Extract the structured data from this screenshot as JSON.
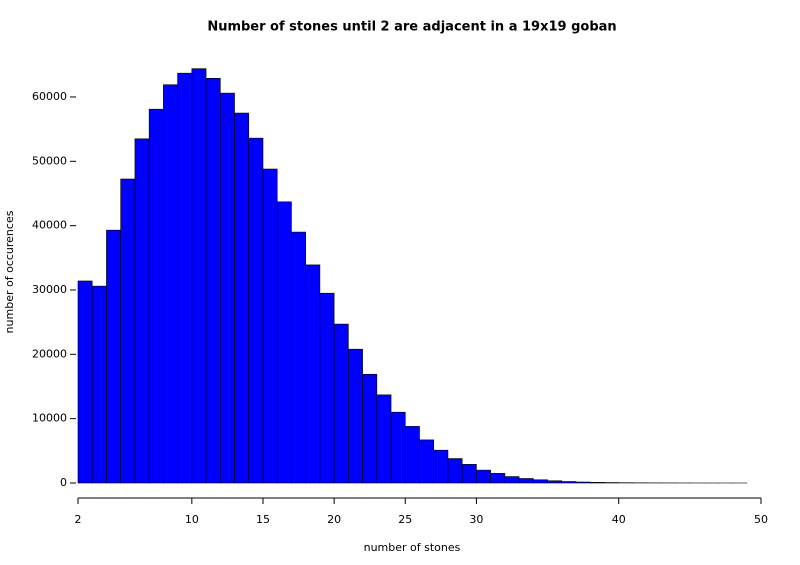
{
  "chart_data": {
    "type": "histogram",
    "title": "Number of stones until 2 are adjacent in a 19x19 goban",
    "x_label": "number of stones",
    "y_label": "number of occurences",
    "bins": [
      2,
      3,
      4,
      5,
      6,
      7,
      8,
      9,
      10,
      11,
      12,
      13,
      14,
      15,
      16,
      17,
      18,
      19,
      20,
      21,
      22,
      23,
      24,
      25,
      26,
      27,
      28,
      29,
      30,
      31,
      32,
      33,
      34,
      35,
      36,
      37,
      38,
      39,
      40,
      41,
      42,
      43,
      44,
      45,
      46,
      47,
      48,
      49
    ],
    "values": [
      31400,
      30600,
      39300,
      47250,
      53500,
      58100,
      61900,
      63700,
      64400,
      62900,
      60600,
      57500,
      53600,
      48800,
      43700,
      39000,
      33900,
      29500,
      24700,
      20800,
      16900,
      13700,
      11000,
      8800,
      6700,
      5100,
      3800,
      2900,
      2000,
      1500,
      1000,
      700,
      500,
      350,
      230,
      150,
      100,
      70,
      45,
      30,
      20,
      12,
      8,
      5,
      3,
      2,
      1
    ],
    "color": "#0000ff",
    "xlim": [
      2,
      50
    ],
    "xticks": [
      2,
      10,
      15,
      20,
      25,
      30,
      40,
      50
    ],
    "ylim": [
      0,
      65000
    ],
    "yticks": [
      0,
      10000,
      20000,
      30000,
      40000,
      50000,
      60000
    ]
  }
}
